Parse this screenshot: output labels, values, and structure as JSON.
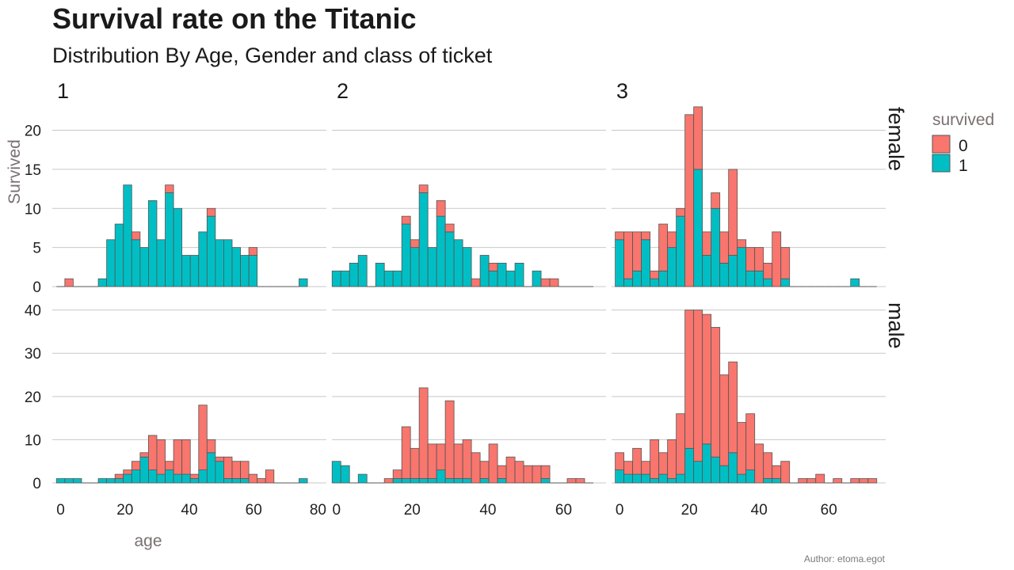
{
  "chart_data": {
    "type": "bar",
    "stacked": true,
    "title": "Survival rate on the Titanic",
    "subtitle": "Distribution By Age, Gender and class of ticket",
    "xlabel": "age",
    "ylabel": "Survived",
    "caption": "Author: etoma.egot",
    "legend": {
      "title": "survived",
      "placement": "right",
      "entries": [
        "0",
        "1"
      ]
    },
    "colors": {
      "0": "#F8766D",
      "1": "#00BFC4",
      "bar_outline": "#555555",
      "grid": "#c8c8c8"
    },
    "grid": true,
    "column_facets": [
      "1",
      "2",
      "3"
    ],
    "row_facets": [
      "female",
      "male"
    ],
    "row_ylim": {
      "female": [
        0,
        23.5
      ],
      "male": [
        0,
        42.5
      ]
    },
    "row_yticks": {
      "female": [
        0,
        5,
        10,
        15,
        20
      ],
      "male": [
        0,
        10,
        20,
        30,
        40
      ]
    },
    "col_xlim": {
      "1": [
        -2.6,
        82.6
      ],
      "2": [
        -1.2,
        71.2
      ],
      "3": [
        -2.3,
        76.3
      ]
    },
    "col_xticks": {
      "1": [
        0,
        20,
        40,
        60,
        80
      ],
      "2": [
        0,
        20,
        40,
        60
      ],
      "3": [
        0,
        20,
        40,
        60
      ]
    },
    "panels": [
      {
        "class": "1",
        "sex": "female",
        "bin_start": 0,
        "bin_width": 2.6,
        "survived_1": [
          0,
          0,
          0,
          0,
          0,
          1,
          6,
          8,
          13,
          6,
          5,
          11,
          6,
          12,
          10,
          4,
          4,
          7,
          9,
          6,
          6,
          5,
          4,
          4,
          0,
          0,
          0,
          0,
          0,
          1
        ],
        "survived_0": [
          0,
          1,
          0,
          0,
          0,
          0,
          0,
          0,
          0,
          1,
          0,
          0,
          0,
          1,
          0,
          0,
          0,
          0,
          1,
          0,
          0,
          0,
          0,
          1,
          0,
          0,
          0,
          0,
          0,
          0
        ]
      },
      {
        "class": "2",
        "sex": "female",
        "bin_start": 0,
        "bin_width": 2.3,
        "survived_1": [
          2,
          2,
          3,
          4,
          0,
          3,
          2,
          2,
          8,
          5,
          12,
          5,
          9,
          7,
          6,
          5,
          0,
          4,
          2,
          3,
          2,
          3,
          0,
          2,
          0,
          0,
          0,
          0,
          0,
          0
        ],
        "survived_0": [
          0,
          0,
          0,
          0,
          0,
          0,
          0,
          0,
          1,
          1,
          1,
          0,
          2,
          1,
          0,
          0,
          1,
          0,
          1,
          0,
          0,
          0,
          0,
          0,
          1,
          1,
          0,
          0,
          0,
          0
        ]
      },
      {
        "class": "3",
        "sex": "female",
        "bin_start": 0,
        "bin_width": 2.5,
        "survived_1": [
          6,
          1,
          2,
          6,
          1,
          2,
          5,
          9,
          0,
          15,
          4,
          10,
          3,
          4,
          5,
          2,
          2,
          1,
          0,
          1,
          0,
          0,
          0,
          0,
          0,
          0,
          0,
          1,
          0,
          0
        ],
        "survived_0": [
          1,
          6,
          5,
          1,
          1,
          6,
          2,
          1,
          22,
          8,
          3,
          2,
          4,
          11,
          1,
          3,
          3,
          2,
          7,
          4,
          0,
          0,
          0,
          0,
          0,
          0,
          0,
          0,
          0,
          0
        ]
      },
      {
        "class": "1",
        "sex": "male",
        "bin_start": 0,
        "bin_width": 2.6,
        "survived_1": [
          1,
          1,
          1,
          0,
          0,
          1,
          1,
          1,
          2,
          3,
          6,
          3,
          2,
          3,
          2,
          2,
          1,
          3,
          7,
          5,
          1,
          1,
          1,
          0,
          0,
          0,
          0,
          0,
          0,
          1
        ],
        "survived_0": [
          0,
          0,
          0,
          0,
          0,
          0,
          0,
          1,
          1,
          2,
          1,
          8,
          8,
          2,
          8,
          8,
          1,
          15,
          3,
          1,
          5,
          4,
          4,
          2,
          1,
          3,
          0,
          0,
          0,
          0
        ]
      },
      {
        "class": "2",
        "sex": "male",
        "bin_start": 0,
        "bin_width": 2.3,
        "survived_1": [
          5,
          4,
          0,
          2,
          0,
          0,
          0,
          1,
          1,
          1,
          1,
          1,
          3,
          1,
          1,
          1,
          0,
          1,
          0,
          1,
          0,
          0,
          0,
          0,
          1,
          0,
          0,
          0,
          0,
          0
        ],
        "survived_0": [
          0,
          0,
          0,
          0,
          0,
          0,
          1,
          2,
          12,
          7,
          21,
          8,
          6,
          18,
          8,
          9,
          7,
          4,
          9,
          3,
          6,
          5,
          4,
          4,
          3,
          0,
          0,
          1,
          1,
          0
        ]
      },
      {
        "class": "3",
        "sex": "male",
        "bin_start": 0,
        "bin_width": 2.5,
        "survived_1": [
          3,
          2,
          2,
          2,
          1,
          2,
          1,
          2,
          8,
          5,
          9,
          6,
          4,
          7,
          2,
          3,
          0,
          1,
          1,
          0,
          0,
          0,
          0,
          0,
          0,
          0,
          0,
          0,
          0,
          0
        ],
        "survived_0": [
          4,
          3,
          6,
          3,
          9,
          5,
          9,
          14,
          32,
          35,
          30,
          30,
          21,
          21,
          12,
          13,
          9,
          6,
          3,
          5,
          0,
          1,
          1,
          2,
          0,
          1,
          0,
          1,
          1,
          1
        ]
      }
    ]
  }
}
